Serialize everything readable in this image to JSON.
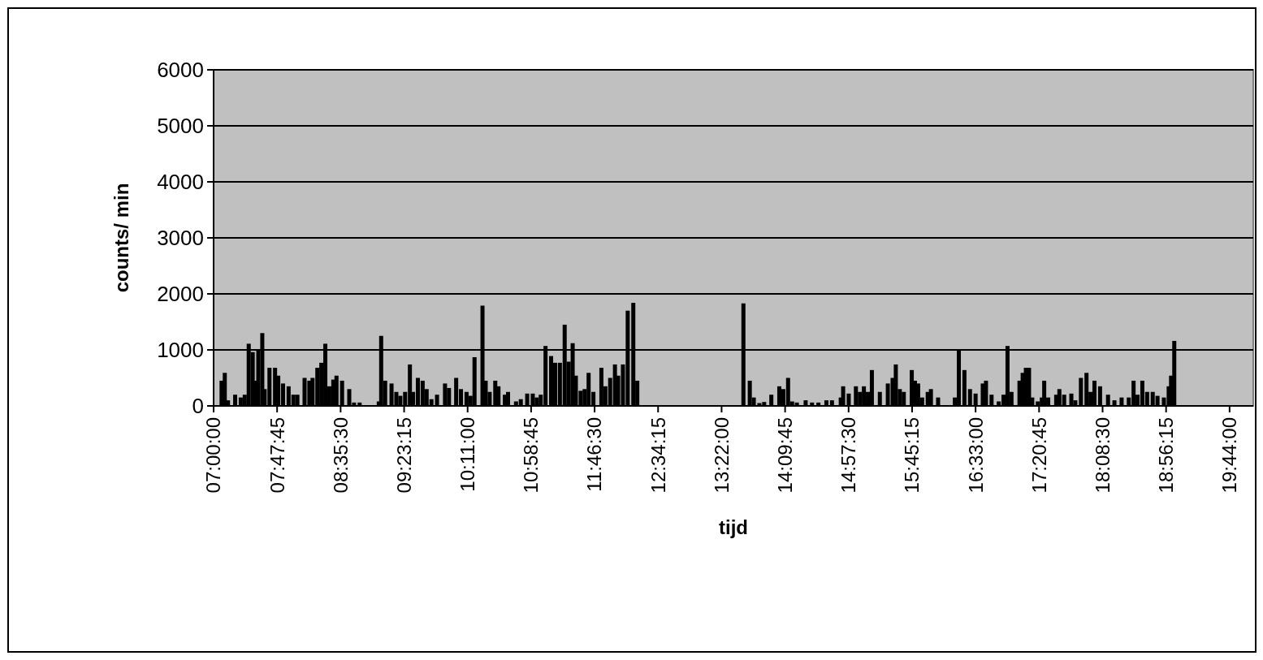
{
  "chart_data": {
    "type": "bar",
    "xlabel": "tijd",
    "ylabel": "counts/ min",
    "color": "#000000",
    "grid": "y",
    "xlim": [
      7,
      20.03
    ],
    "ylim": [
      0,
      6000
    ],
    "yticks": [
      0,
      1000,
      2000,
      3000,
      4000,
      5000,
      6000
    ],
    "xticks": [
      {
        "value": 7,
        "label": "07:00:00"
      },
      {
        "value": 7.7958,
        "label": "07:47:45"
      },
      {
        "value": 8.5917,
        "label": "08:35:30"
      },
      {
        "value": 9.3875,
        "label": "09:23:15"
      },
      {
        "value": 10.1833,
        "label": "10:11:00"
      },
      {
        "value": 10.9792,
        "label": "10:58:45"
      },
      {
        "value": 11.775,
        "label": "11:46:30"
      },
      {
        "value": 12.5708,
        "label": "12:34:15"
      },
      {
        "value": 13.3667,
        "label": "13:22:00"
      },
      {
        "value": 14.1625,
        "label": "14:09:45"
      },
      {
        "value": 14.9583,
        "label": "14:57:30"
      },
      {
        "value": 15.7542,
        "label": "15:45:15"
      },
      {
        "value": 16.55,
        "label": "16:33:00"
      },
      {
        "value": 17.3458,
        "label": "17:20:45"
      },
      {
        "value": 18.1417,
        "label": "18:08:30"
      },
      {
        "value": 18.9375,
        "label": "18:56:15"
      },
      {
        "value": 19.7333,
        "label": "19:44:00"
      }
    ],
    "x": [
      7.1,
      7.14,
      7.18,
      7.27,
      7.34,
      7.39,
      7.44,
      7.49,
      7.52,
      7.56,
      7.61,
      7.64,
      7.7,
      7.77,
      7.81,
      7.87,
      7.94,
      8.0,
      8.05,
      8.14,
      8.2,
      8.24,
      8.3,
      8.35,
      8.4,
      8.45,
      8.5,
      8.54,
      8.61,
      8.7,
      8.76,
      8.83,
      9.07,
      9.1,
      9.15,
      9.23,
      9.29,
      9.34,
      9.4,
      9.46,
      9.5,
      9.56,
      9.62,
      9.67,
      9.73,
      9.8,
      9.9,
      9.95,
      10.04,
      10.1,
      10.17,
      10.22,
      10.27,
      10.37,
      10.41,
      10.46,
      10.53,
      10.57,
      10.65,
      10.69,
      10.79,
      10.85,
      10.93,
      11.0,
      11.05,
      11.1,
      11.16,
      11.23,
      11.28,
      11.34,
      11.4,
      11.45,
      11.5,
      11.54,
      11.6,
      11.65,
      11.7,
      11.76,
      11.86,
      11.91,
      11.97,
      12.03,
      12.07,
      12.13,
      12.19,
      12.26,
      12.31,
      13.64,
      13.72,
      13.77,
      13.84,
      13.9,
      13.99,
      14.09,
      14.14,
      14.2,
      14.25,
      14.31,
      14.42,
      14.5,
      14.58,
      14.68,
      14.75,
      14.86,
      14.89,
      14.96,
      15.05,
      15.1,
      15.15,
      15.2,
      15.25,
      15.35,
      15.45,
      15.51,
      15.55,
      15.6,
      15.65,
      15.75,
      15.79,
      15.83,
      15.88,
      15.95,
      15.99,
      16.08,
      16.29,
      16.34,
      16.41,
      16.48,
      16.55,
      16.64,
      16.68,
      16.75,
      16.84,
      16.9,
      16.95,
      17.0,
      17.1,
      17.14,
      17.18,
      17.22,
      17.26,
      17.33,
      17.38,
      17.41,
      17.46,
      17.56,
      17.6,
      17.66,
      17.75,
      17.8,
      17.87,
      17.94,
      17.99,
      18.04,
      18.11,
      18.21,
      18.29,
      18.38,
      18.47,
      18.53,
      18.58,
      18.64,
      18.7,
      18.77,
      18.83,
      18.91,
      18.97,
      19.0,
      19.04
    ],
    "values": [
      450,
      590,
      100,
      200,
      150,
      200,
      1110,
      960,
      450,
      990,
      1300,
      300,
      680,
      680,
      540,
      400,
      350,
      200,
      200,
      500,
      450,
      500,
      680,
      770,
      1110,
      350,
      470,
      540,
      450,
      300,
      60,
      60,
      80,
      1250,
      450,
      400,
      250,
      180,
      250,
      740,
      250,
      500,
      450,
      300,
      120,
      200,
      400,
      320,
      500,
      300,
      250,
      180,
      870,
      1790,
      450,
      250,
      450,
      350,
      200,
      250,
      80,
      120,
      220,
      220,
      150,
      200,
      1070,
      890,
      770,
      770,
      1450,
      790,
      1120,
      540,
      270,
      300,
      590,
      250,
      680,
      350,
      500,
      740,
      540,
      740,
      1700,
      1840,
      450,
      1830,
      450,
      150,
      50,
      70,
      200,
      350,
      300,
      500,
      80,
      60,
      100,
      60,
      60,
      100,
      100,
      150,
      350,
      220,
      350,
      250,
      350,
      250,
      640,
      250,
      400,
      500,
      740,
      300,
      250,
      640,
      450,
      400,
      150,
      250,
      300,
      150,
      150,
      1010,
      640,
      300,
      220,
      400,
      450,
      200,
      80,
      200,
      1070,
      250,
      450,
      590,
      680,
      680,
      150,
      80,
      150,
      450,
      150,
      200,
      300,
      200,
      220,
      100,
      500,
      590,
      250,
      450,
      350,
      200,
      100,
      150,
      150,
      450,
      200,
      450,
      250,
      250,
      180,
      150,
      350,
      540,
      1160
    ]
  }
}
